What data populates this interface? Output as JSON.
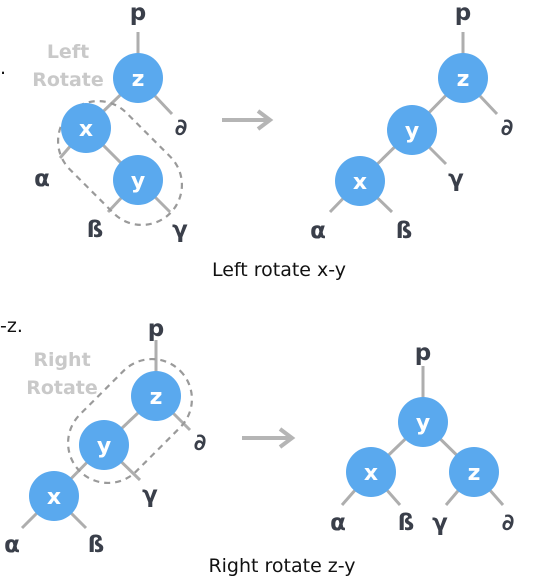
{
  "top": {
    "edge_fragment": ".",
    "rotate_tag": [
      "Left",
      "Rotate"
    ],
    "before": {
      "parent": "p",
      "z": "z",
      "x": "x",
      "y": "y",
      "alpha": "α",
      "beta": "ß",
      "gamma": "γ",
      "delta": "∂"
    },
    "after": {
      "parent": "p",
      "z": "z",
      "x": "x",
      "y": "y",
      "alpha": "α",
      "beta": "ß",
      "gamma": "γ",
      "delta": "∂"
    },
    "caption": "Left rotate x-y"
  },
  "bottom": {
    "edge_fragment": "-z.",
    "rotate_tag": [
      "Right",
      "Rotate"
    ],
    "before": {
      "parent": "p",
      "z": "z",
      "x": "x",
      "y": "y",
      "alpha": "α",
      "beta": "ß",
      "gamma": "γ",
      "delta": "∂"
    },
    "after": {
      "parent": "p",
      "z": "z",
      "x": "x",
      "y": "y",
      "alpha": "α",
      "beta": "ß",
      "gamma": "γ",
      "delta": "∂"
    },
    "caption": "Right rotate z-y"
  },
  "colors": {
    "node": "#5aa9ee",
    "edge": "#aeaeae",
    "leaf_text": "#3a3f4a",
    "tag_text": "#c9c9c9"
  }
}
